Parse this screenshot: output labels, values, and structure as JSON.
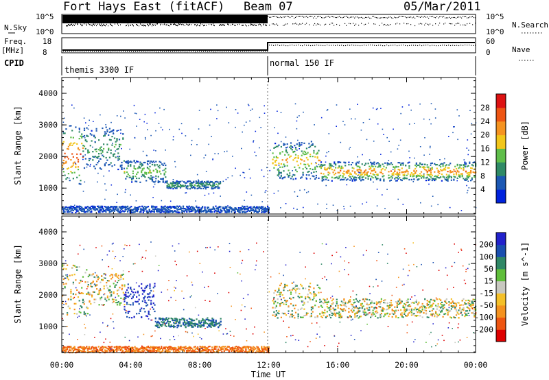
{
  "header": {
    "station": "Fort Hays East (fitACF)",
    "beam": "Beam 07",
    "date": "05/Mar/2011"
  },
  "strip": {
    "nsky_label": "N.Sky",
    "nsky_ticks": [
      "10^5",
      "10^0"
    ],
    "nsearch_label": "N.Search",
    "nsearch_ticks": [
      "10^5",
      "10^0"
    ],
    "freq_label": "Freq.",
    "freq_unit": "[MHz]",
    "freq_ticks": [
      "18",
      "8"
    ],
    "nave_label": "Nave",
    "nave_ticks": [
      "60",
      "0"
    ],
    "cpid_label": "CPID",
    "cpid_segments": [
      "themis 3300 IF",
      "normal 150 IF"
    ]
  },
  "colors": {
    "power_scale": [
      "#0022dd",
      "#1c58b4",
      "#2f8a66",
      "#5fbe4a",
      "#f2c61a",
      "#f59320",
      "#ee5513",
      "#dd1212"
    ],
    "velocity_scale": [
      "#dd0000",
      "#ee5511",
      "#f4921f",
      "#f4c028",
      "#c8c8c0",
      "#5fbe3a",
      "#2f8766",
      "#1a4fb0",
      "#2222cc"
    ]
  },
  "chart_data": [
    {
      "type": "heatmap",
      "panel": "power",
      "ylabel": "Slant Range [km]",
      "xlabel": "Time UT",
      "xlim": [
        0,
        24
      ],
      "ylim": [
        180,
        4500
      ],
      "x_ticks": [
        "00:00",
        "04:00",
        "08:00",
        "12:00",
        "16:00",
        "20:00",
        "00:00"
      ],
      "y_ticks": [
        "1000",
        "2000",
        "3000",
        "4000"
      ],
      "colorbar_label": "Power [dB]",
      "colorbar_ticks": [
        "4",
        "8",
        "12",
        "16",
        "20",
        "24",
        "28"
      ],
      "colorbar_range": [
        0,
        32
      ],
      "echo_bands": [
        {
          "t_start": 0.0,
          "t_end": 1.2,
          "range_low": 1100,
          "range_high": 3000,
          "peak_power_db": 28
        },
        {
          "t_start": 1.2,
          "t_end": 3.6,
          "range_low": 1600,
          "range_high": 2950,
          "peak_power_db": 12
        },
        {
          "t_start": 3.6,
          "t_end": 6.0,
          "range_low": 1200,
          "range_high": 1900,
          "peak_power_db": 16
        },
        {
          "t_start": 6.0,
          "t_end": 9.2,
          "range_low": 1000,
          "range_high": 1250,
          "peak_power_db": 12
        },
        {
          "t_start": 0.0,
          "t_end": 12.0,
          "range_low": 250,
          "range_high": 450,
          "peak_power_db": 6
        },
        {
          "t_start": 12.2,
          "t_end": 15.0,
          "range_low": 1300,
          "range_high": 2500,
          "peak_power_db": 20
        },
        {
          "t_start": 15.0,
          "t_end": 24.0,
          "range_low": 1250,
          "range_high": 1850,
          "peak_power_db": 24
        }
      ]
    },
    {
      "type": "heatmap",
      "panel": "velocity",
      "ylabel": "Slant Range [km]",
      "xlabel": "Time UT",
      "xlim": [
        0,
        24
      ],
      "ylim": [
        180,
        4500
      ],
      "x_ticks": [
        "00:00",
        "04:00",
        "08:00",
        "12:00",
        "16:00",
        "20:00",
        "00:00"
      ],
      "y_ticks": [
        "1000",
        "2000",
        "3000",
        "4000"
      ],
      "colorbar_label": "Velocity [m s^-1]",
      "colorbar_ticks": [
        "200",
        "100",
        "50",
        "15",
        "-15",
        "-50",
        "-100",
        "-200"
      ],
      "colorbar_range": [
        -200,
        200
      ],
      "echo_bands": [
        {
          "t_start": 0.0,
          "t_end": 1.5,
          "range_low": 1400,
          "range_high": 3000,
          "velocity": 0
        },
        {
          "t_start": 1.5,
          "t_end": 3.6,
          "range_low": 1700,
          "range_high": 2700,
          "velocity": 0
        },
        {
          "t_start": 3.6,
          "t_end": 5.4,
          "range_low": 1300,
          "range_high": 2400,
          "velocity": 100
        },
        {
          "t_start": 5.4,
          "t_end": 9.2,
          "range_low": 1000,
          "range_high": 1300,
          "velocity": 50
        },
        {
          "t_start": 0.0,
          "t_end": 12.0,
          "range_low": 200,
          "range_high": 400,
          "velocity": -50
        },
        {
          "t_start": 12.2,
          "t_end": 15.0,
          "range_low": 1300,
          "range_high": 2400,
          "velocity": 0
        },
        {
          "t_start": 15.0,
          "t_end": 24.0,
          "range_low": 1300,
          "range_high": 1900,
          "velocity": 0
        }
      ]
    }
  ],
  "x_axis_label": "Time UT"
}
